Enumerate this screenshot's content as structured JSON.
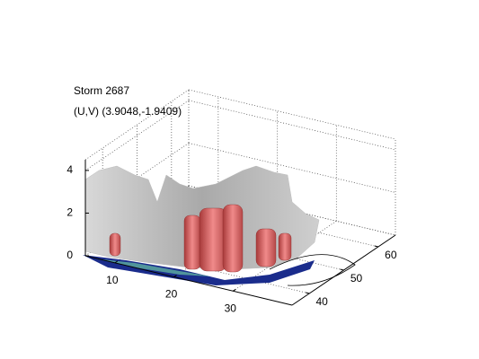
{
  "chart_data": {
    "type": "isosurface",
    "title": "Storm 2687",
    "subtitle": "(U,V) (3.9048,-1.9409)",
    "xlim": [
      5,
      40
    ],
    "xticks": [
      10,
      20,
      30
    ],
    "ylim": [
      35,
      65
    ],
    "yticks": [
      40,
      50,
      60
    ],
    "zlim": [
      0,
      4.5
    ],
    "zticks": [
      0,
      2,
      4
    ],
    "grid": true
  }
}
